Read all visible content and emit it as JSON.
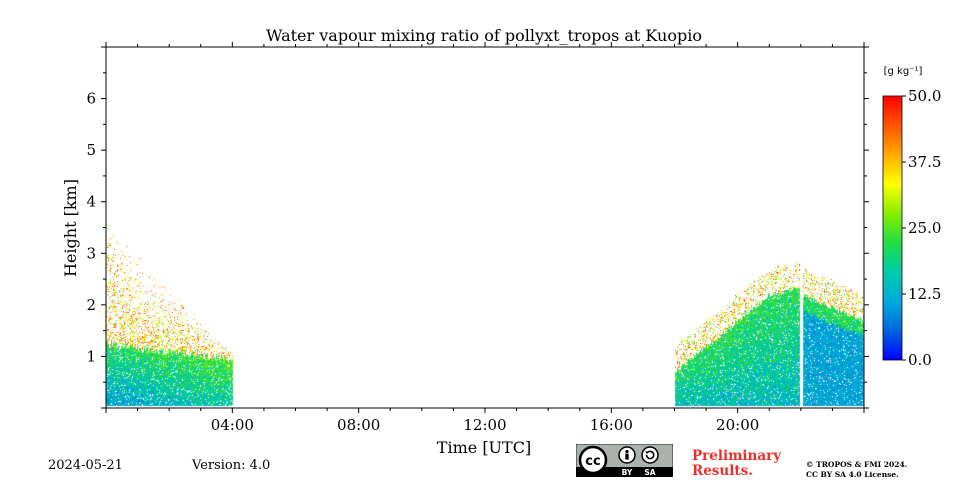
{
  "chart_data": {
    "type": "heatmap",
    "title": "Water vapour mixing ratio of pollyxt_tropos at Kuopio",
    "xlabel": "Time [UTC]",
    "ylabel": "Height [km]",
    "x_ticks": [
      "04:00",
      "08:00",
      "12:00",
      "16:00",
      "20:00"
    ],
    "x_tick_hours": [
      4,
      8,
      12,
      16,
      20
    ],
    "xlim_hours": [
      0,
      24
    ],
    "y_ticks": [
      "1",
      "2",
      "3",
      "4",
      "5",
      "6"
    ],
    "y_tick_values": [
      1,
      2,
      3,
      4,
      5,
      6
    ],
    "ylim_km": [
      0,
      7
    ],
    "colorbar": {
      "unit_label": "[g kg⁻¹]",
      "ticks": [
        "0.0",
        "12.5",
        "25.0",
        "37.5",
        "50.0"
      ],
      "tick_values": [
        0,
        12.5,
        25,
        37.5,
        50
      ],
      "range": [
        0,
        50
      ],
      "colormap": [
        "#0000ff",
        "#0066dd",
        "#00aadd",
        "#00ccaa",
        "#22dd44",
        "#88ee00",
        "#ffff00",
        "#ffaa00",
        "#ff5500",
        "#ff0000"
      ]
    },
    "data_segments": [
      {
        "start_hour": 0.0,
        "end_hour": 4.0,
        "description": "Measurements from 00:00 to 04:00; dense data below ~1.2 km, sparse high values up to ~4 km"
      },
      {
        "start_hour": 18.0,
        "end_hour": 24.0,
        "description": "Measurements from 18:00 to 24:00; dense data up to ~2.3 km, gap near 22:00"
      }
    ],
    "data_gap_hour": 22.0
  },
  "footer": {
    "date": "2024-05-21",
    "version": "Version: 4.0",
    "preliminary": [
      "Preliminary",
      "Results."
    ],
    "copyright": [
      "© TROPOS & FMI 2024.",
      "CC BY SA 4.0 License."
    ],
    "cc_badge": {
      "cc": "cc",
      "by": "BY",
      "sa": "SA"
    }
  }
}
